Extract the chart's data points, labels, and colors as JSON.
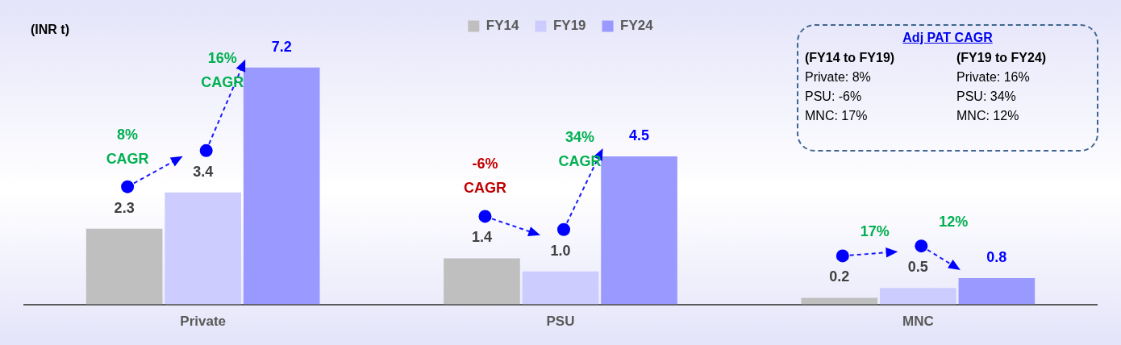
{
  "chart_data": {
    "type": "bar",
    "ylabel": "(INR t)",
    "categories": [
      "Private",
      "PSU",
      "MNC"
    ],
    "series": [
      {
        "name": "FY14",
        "color": "#bfbfbf",
        "values": [
          2.3,
          1.4,
          0.2
        ],
        "value_labels": [
          "2.3",
          "1.4",
          "0.2"
        ]
      },
      {
        "name": "FY19",
        "color": "#ccccff",
        "values": [
          3.4,
          1.0,
          0.5
        ],
        "value_labels": [
          "3.4",
          "1.0",
          "0.5"
        ]
      },
      {
        "name": "FY24",
        "color": "#9999ff",
        "values": [
          7.2,
          4.5,
          0.8
        ],
        "value_labels": [
          "7.2",
          "4.5",
          "0.8"
        ]
      }
    ],
    "legend": "top",
    "annotations": [
      "8% CAGR",
      "16% CAGR",
      "-6% CAGR",
      "34% CAGR",
      "17%",
      "12%",
      "Adj PAT CAGR",
      "(FY14 to FY19)",
      "(FY19 to FY24)",
      "Private: 8%",
      "Private: 16%",
      "PSU: -6%",
      "PSU: 34%",
      "MNC: 17%",
      "MNC: 12%"
    ]
  }
}
